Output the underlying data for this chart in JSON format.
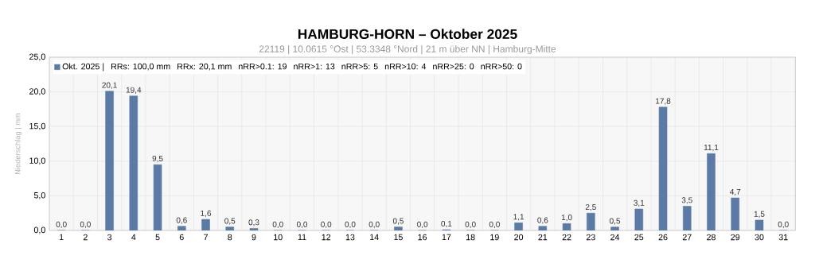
{
  "chart_data": {
    "type": "bar",
    "title": "HAMBURG-HORN   –   Oktober 2025",
    "subtitle": "22119  |  10.0615 °Ost  |  53.3348 °Nord  | 21 m über NN  |  Hamburg-Mitte",
    "ylabel": "Niederschlag | mm",
    "categories": [
      "1",
      "2",
      "3",
      "4",
      "5",
      "6",
      "7",
      "8",
      "9",
      "10",
      "11",
      "12",
      "13",
      "14",
      "15",
      "16",
      "17",
      "18",
      "19",
      "20",
      "21",
      "22",
      "23",
      "24",
      "25",
      "26",
      "27",
      "28",
      "29",
      "30",
      "31"
    ],
    "series": [
      {
        "name": "Okt. 2025 |",
        "color": "#5b7aa6",
        "values": [
          0,
          0,
          20.1,
          19.4,
          9.5,
          0.6,
          1.6,
          0.5,
          0.3,
          0,
          0,
          0,
          0,
          0,
          0.5,
          0,
          0.1,
          0,
          0,
          1.1,
          0.6,
          1.0,
          2.5,
          0.5,
          3.1,
          17.8,
          3.5,
          11.1,
          4.7,
          1.5,
          0
        ],
        "value_labels": [
          "0,0",
          "0,0",
          "20,1",
          "19,4",
          "9,5",
          "0,6",
          "1,6",
          "0,5",
          "0,3",
          "0,0",
          "0,0",
          "0,0",
          "0,0",
          "0,0",
          "0,5",
          "0,0",
          "0,1",
          "0,0",
          "0,0",
          "1,1",
          "0,6",
          "1,0",
          "2,5",
          "0,5",
          "3,1",
          "17,8",
          "3,5",
          "11,1",
          "4,7",
          "1,5",
          "0,0"
        ]
      }
    ],
    "annotations": [
      "RRs: 100,0 mm",
      "RRx: 20,1 mm",
      "nRR>0.1: 19",
      "nRR>1: 13",
      "nRR>5: 5",
      "nRR>10: 4",
      "nRR>25: 0",
      "nRR>50: 0"
    ],
    "ylim": [
      0,
      25
    ],
    "yticks": [
      {
        "value": 0,
        "label": "0,0"
      },
      {
        "value": 5,
        "label": "5,0"
      },
      {
        "value": 10,
        "label": "10,0"
      },
      {
        "value": 15,
        "label": "15,0"
      },
      {
        "value": 20,
        "label": "20,0"
      },
      {
        "value": 25,
        "label": "25,0"
      }
    ],
    "grid": true,
    "legend": "top left"
  }
}
